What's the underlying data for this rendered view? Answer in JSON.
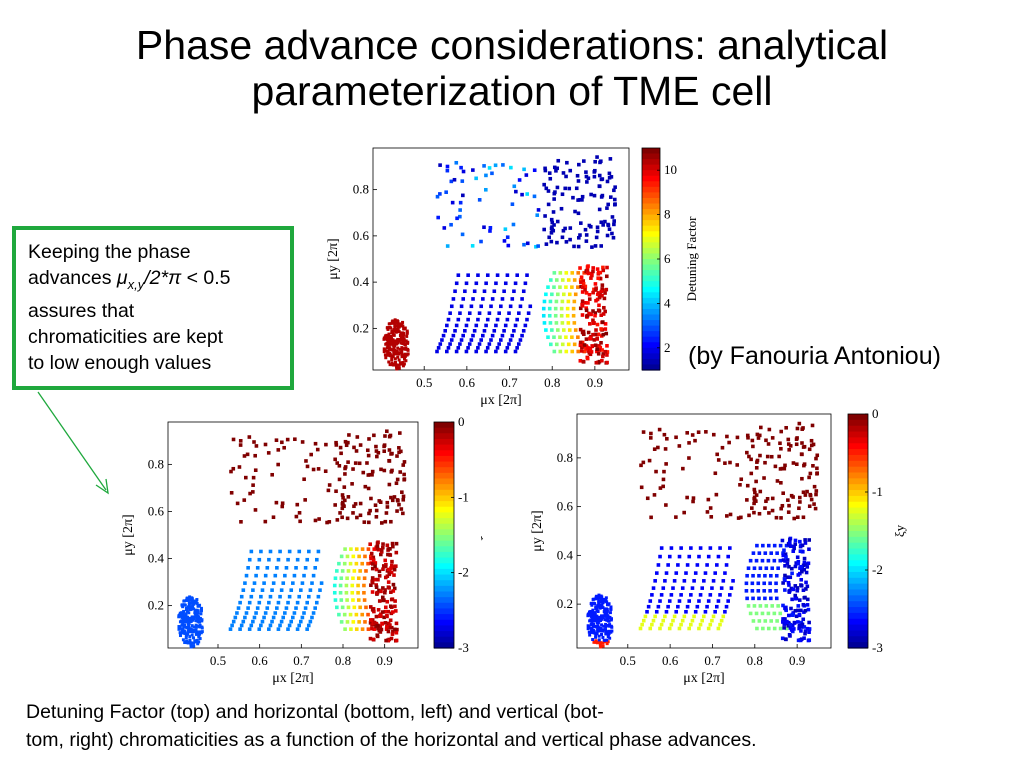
{
  "slide": {
    "title_line1": "Phase advance considerations: analytical",
    "title_line2": "parameterization of TME cell",
    "credit": "(by Fanouria Antoniou)",
    "note_line1": "Keeping the phase",
    "note_line2_pre": "advances ",
    "note_mu": "μ",
    "note_sub": "x,y",
    "note_mid": "/2*",
    "note_pi": "π",
    "note_post": " < 0.5",
    "note_line3": "assures that",
    "note_line4": "chromaticities are kept",
    "note_line5": "to low enough values",
    "caption_line1": "Detuning Factor (top) and horizontal (bottom, left) and vertical (bot-",
    "caption_line2": "tom, right) chromaticities as a function of the horizontal and vertical phase advances."
  },
  "colors": {
    "note_border": "#1fa83d",
    "arrow": "#1fa83d"
  },
  "chart_data": [
    {
      "type": "scatter",
      "title": "",
      "xlabel": "μx [2π]",
      "ylabel": "μy [2π]",
      "xlim": [
        0.38,
        0.98
      ],
      "ylim": [
        0.02,
        0.98
      ],
      "xticks": [
        "0.5",
        "0.6",
        "0.7",
        "0.8",
        "0.9"
      ],
      "yticks": [
        "0.2",
        "0.4",
        "0.6",
        "0.8"
      ],
      "colorbar_label": "Detuning Factor",
      "colorbar_ticks": [
        "2",
        "4",
        "6",
        "8",
        "10"
      ],
      "colorbar_range": [
        1,
        11
      ],
      "colormap": "jet"
    },
    {
      "type": "scatter",
      "title": "",
      "xlabel": "μx [2π]",
      "ylabel": "μy [2π]",
      "xlim": [
        0.38,
        0.98
      ],
      "ylim": [
        0.02,
        0.98
      ],
      "xticks": [
        "0.5",
        "0.6",
        "0.7",
        "0.8",
        "0.9"
      ],
      "yticks": [
        "0.2",
        "0.4",
        "0.6",
        "0.8"
      ],
      "colorbar_label": "ξx",
      "colorbar_ticks": [
        "0",
        "-1",
        "-2",
        "-3"
      ],
      "colorbar_range": [
        -3,
        0
      ],
      "colormap": "jet_reversed"
    },
    {
      "type": "scatter",
      "title": "",
      "xlabel": "μx [2π]",
      "ylabel": "μy [2π]",
      "xlim": [
        0.38,
        0.98
      ],
      "ylim": [
        0.02,
        0.98
      ],
      "xticks": [
        "0.5",
        "0.6",
        "0.7",
        "0.8",
        "0.9"
      ],
      "yticks": [
        "0.2",
        "0.4",
        "0.6",
        "0.8"
      ],
      "colorbar_label": "ξy",
      "colorbar_ticks": [
        "0",
        "-1",
        "-2",
        "-3"
      ],
      "colorbar_range": [
        -3,
        0
      ],
      "colormap": "jet_reversed"
    }
  ]
}
